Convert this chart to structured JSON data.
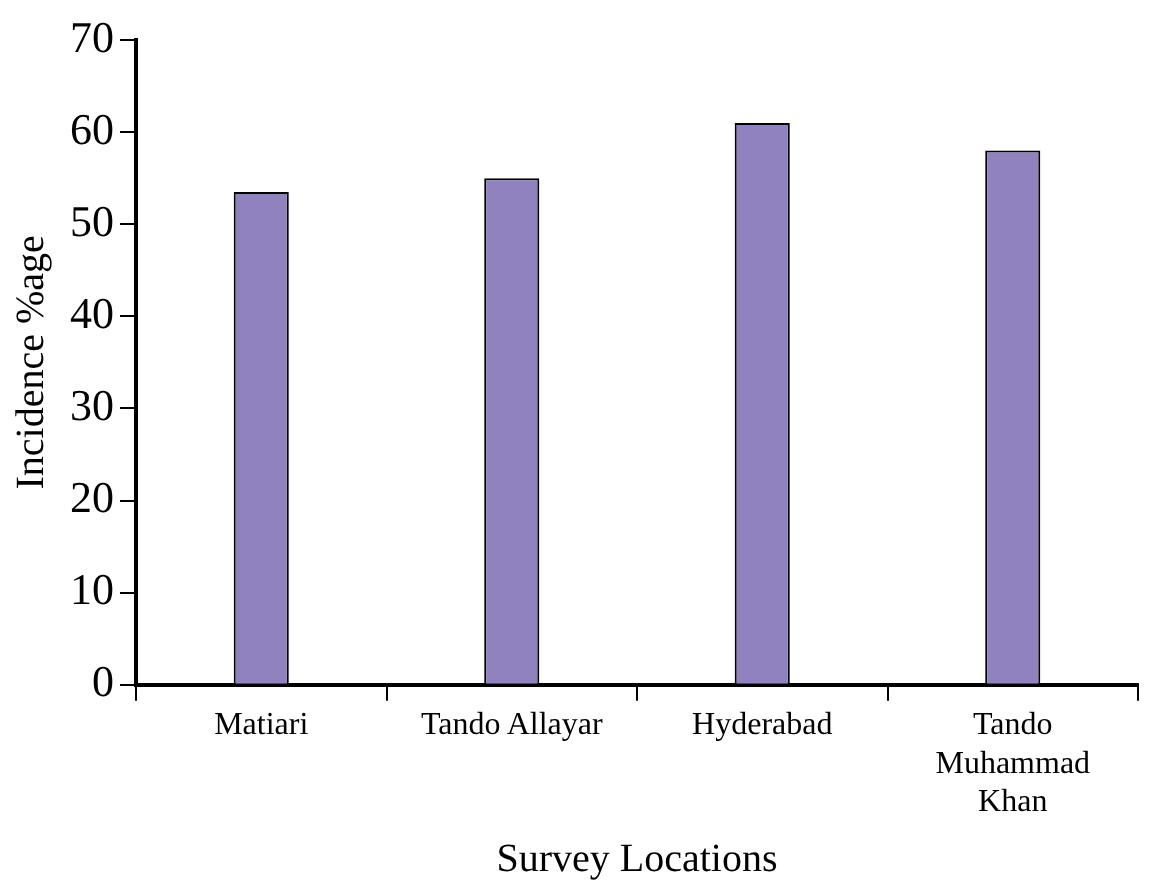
{
  "chart_data": {
    "type": "bar",
    "xlabel": "Survey Locations",
    "ylabel": "Incidence %age",
    "categories": [
      "Matiari",
      "Tando Allayar",
      "Hyderabad",
      "Tando Muhammad Khan"
    ],
    "values": [
      53.5,
      55,
      61,
      58
    ],
    "color": "#8f82bf",
    "ylim": [
      0,
      70
    ],
    "yticks": [
      0,
      10,
      20,
      30,
      40,
      50,
      60,
      70
    ],
    "grid": false,
    "legend": false
  }
}
